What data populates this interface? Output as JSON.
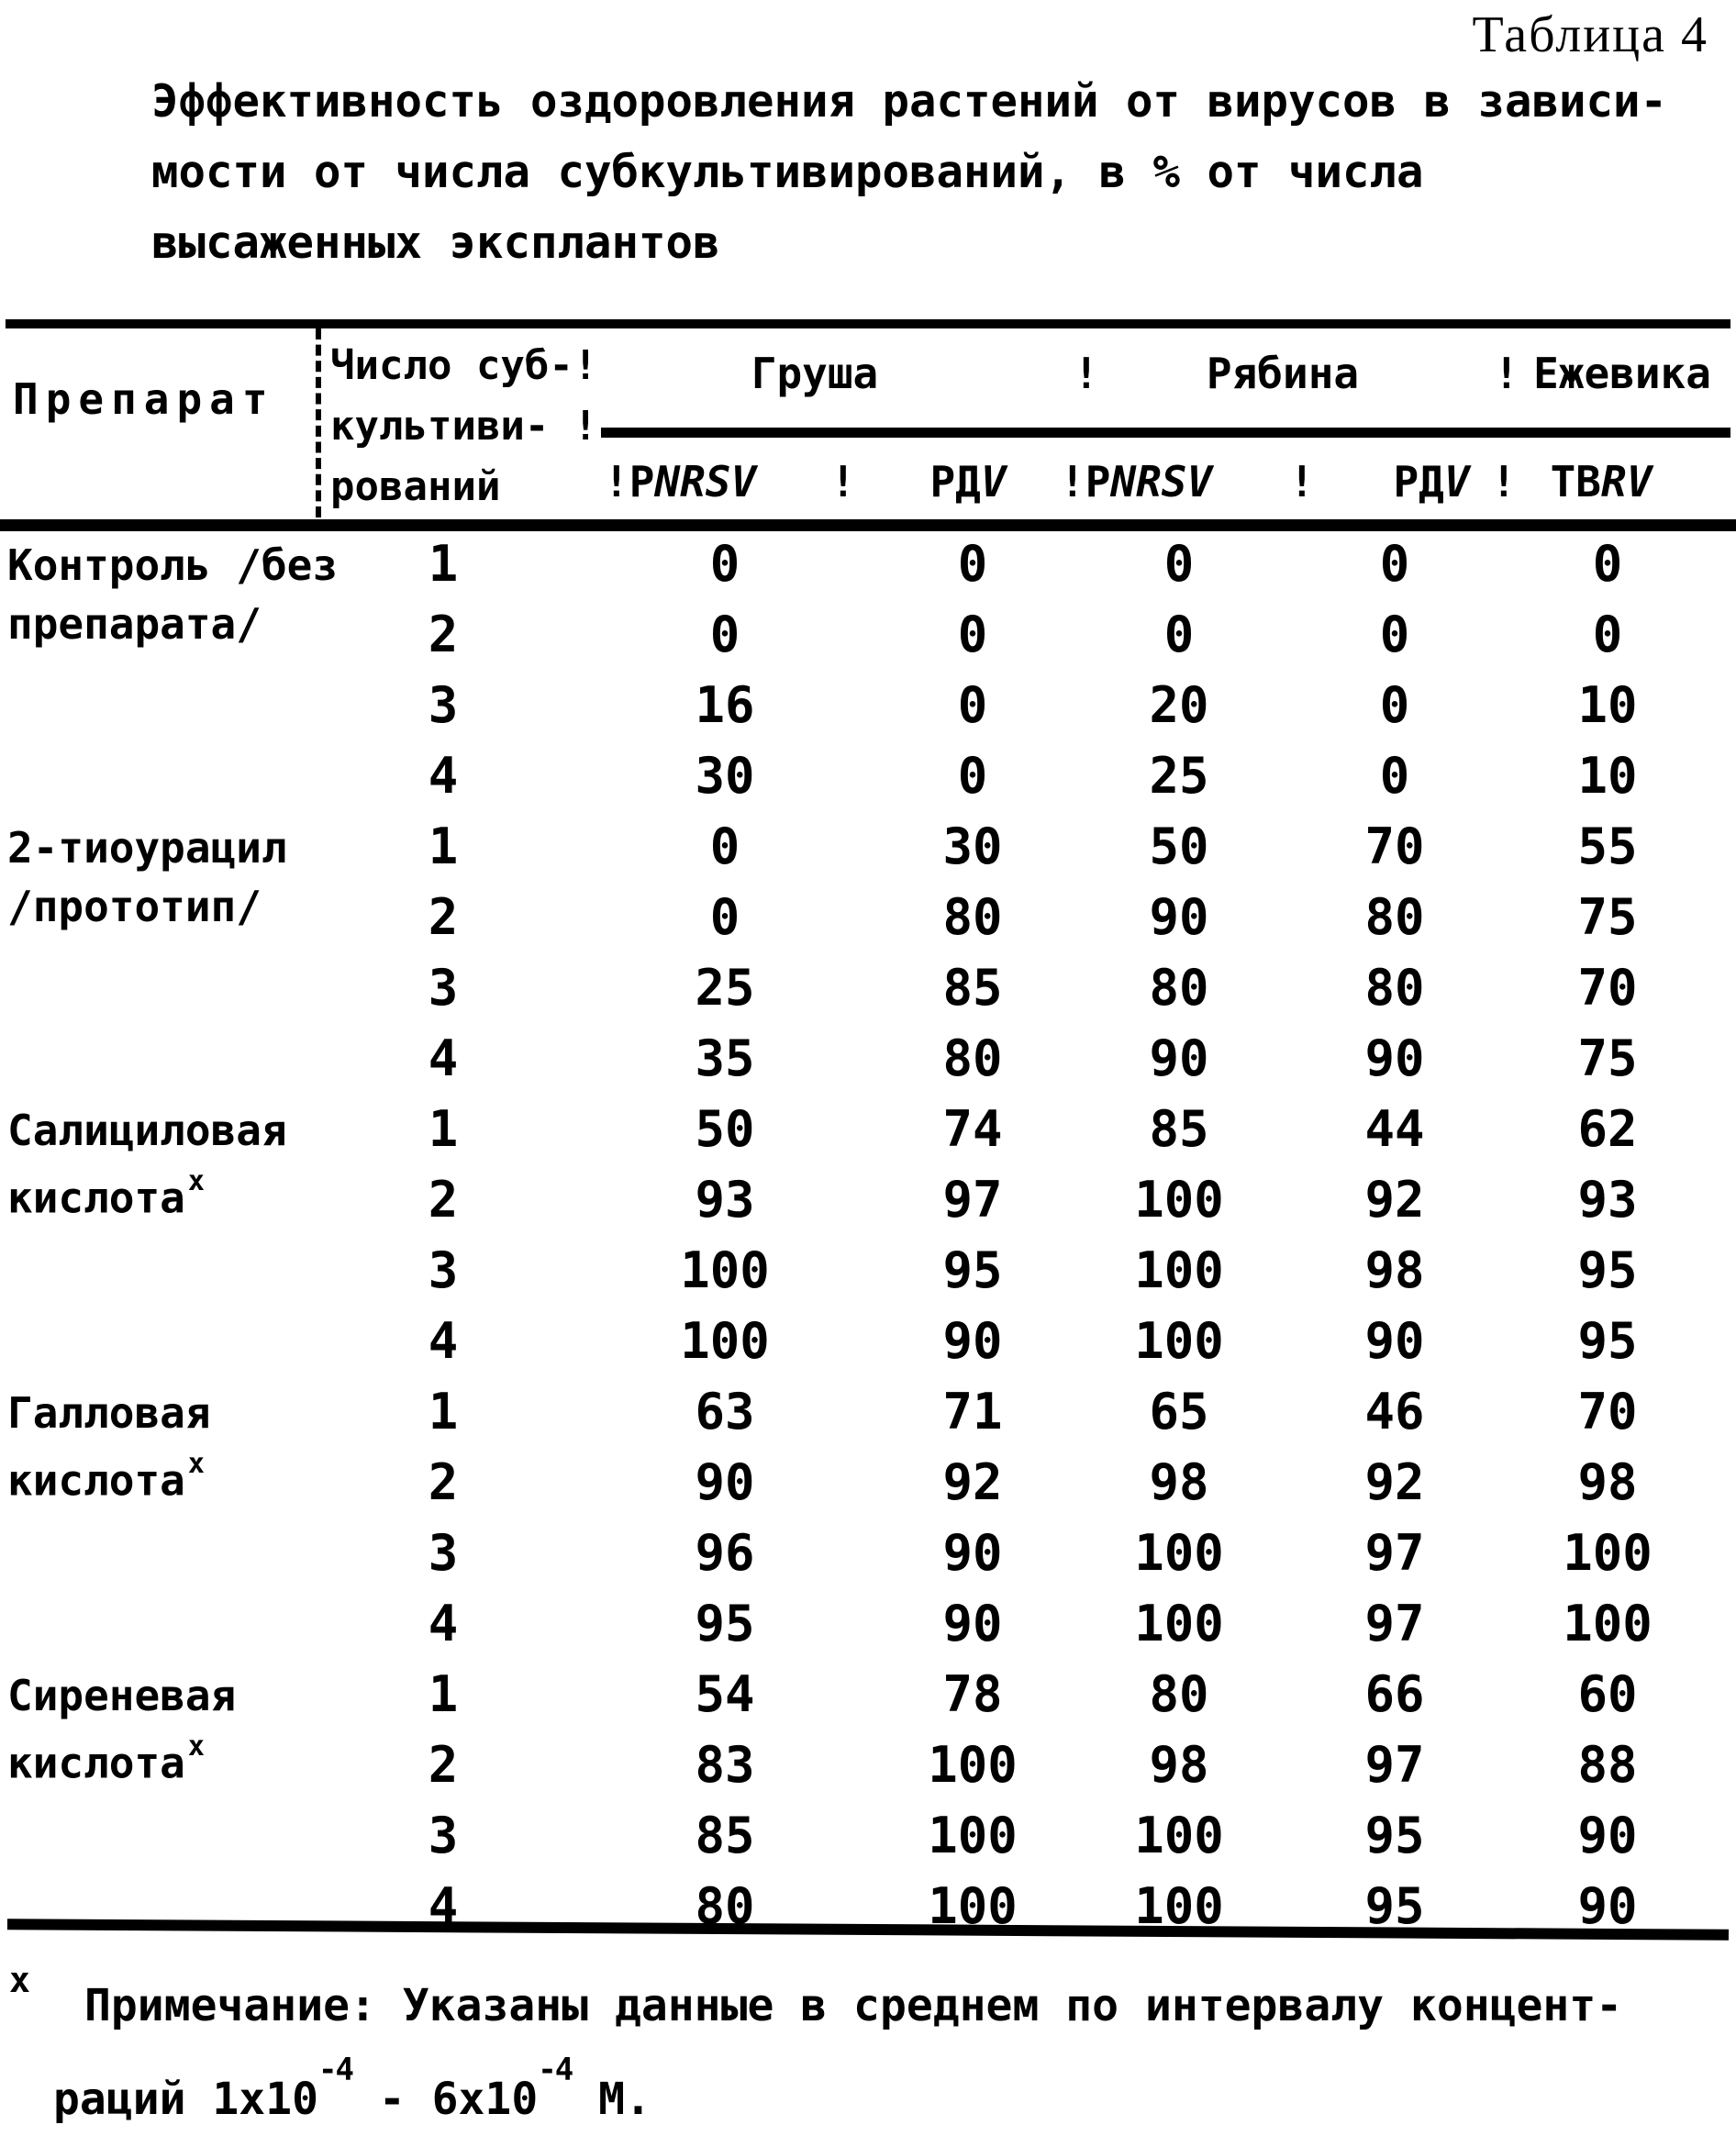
{
  "doc": {
    "table_label": "Таблица 4"
  },
  "title": {
    "line1": "Эффективность оздоровления растений от вирусов в зависи-",
    "line2": "мости от числа субкультивирований, в % от числа",
    "line3": "высаженных эксплантов"
  },
  "table": {
    "header": {
      "col_preparation": "Препарат",
      "col_subcultures_line1": "Число суб-!",
      "col_subcultures_line2": "культиви- !",
      "col_subcultures_line3": "рований",
      "separator_char": "!",
      "fruit_groups": [
        {
          "label": "Груша"
        },
        {
          "label": "Рябина"
        },
        {
          "label": "Ежевика"
        }
      ],
      "virus_columns": [
        {
          "pre": "!P",
          "it": "NRSV"
        },
        {
          "pre": "РД",
          "it": "V"
        },
        {
          "pre": "!P",
          "it": "NRSV"
        },
        {
          "pre": "РД",
          "it": "V"
        },
        {
          "pre": "ТВ",
          "it": "RV"
        }
      ]
    },
    "groups": [
      {
        "label_line1": "Контроль /без",
        "label_line2": "препарата/",
        "marker": "",
        "rows": [
          {
            "n": "1",
            "values": [
              "0",
              "0",
              "0",
              "0",
              "0"
            ]
          },
          {
            "n": "2",
            "values": [
              "0",
              "0",
              "0",
              "0",
              "0"
            ]
          },
          {
            "n": "3",
            "values": [
              "16",
              "0",
              "20",
              "0",
              "10"
            ]
          },
          {
            "n": "4",
            "values": [
              "30",
              "0",
              "25",
              "0",
              "10"
            ]
          }
        ]
      },
      {
        "label_line1": "2-тиоурацил",
        "label_line2": "/прототип/",
        "marker": "",
        "rows": [
          {
            "n": "1",
            "values": [
              "0",
              "30",
              "50",
              "70",
              "55"
            ]
          },
          {
            "n": "2",
            "values": [
              "0",
              "80",
              "90",
              "80",
              "75"
            ]
          },
          {
            "n": "3",
            "values": [
              "25",
              "85",
              "80",
              "80",
              "70"
            ]
          },
          {
            "n": "4",
            "values": [
              "35",
              "80",
              "90",
              "90",
              "75"
            ]
          }
        ]
      },
      {
        "label_line1": "Салициловая",
        "label_line2": "кислота",
        "marker": "х",
        "rows": [
          {
            "n": "1",
            "values": [
              "50",
              "74",
              "85",
              "44",
              "62"
            ]
          },
          {
            "n": "2",
            "values": [
              "93",
              "97",
              "100",
              "92",
              "93"
            ]
          },
          {
            "n": "3",
            "values": [
              "100",
              "95",
              "100",
              "98",
              "95"
            ]
          },
          {
            "n": "4",
            "values": [
              "100",
              "90",
              "100",
              "90",
              "95"
            ]
          }
        ]
      },
      {
        "label_line1": "Галловая",
        "label_line2": "кислота",
        "marker": "х",
        "rows": [
          {
            "n": "1",
            "values": [
              "63",
              "71",
              "65",
              "46",
              "70"
            ]
          },
          {
            "n": "2",
            "values": [
              "90",
              "92",
              "98",
              "92",
              "98"
            ]
          },
          {
            "n": "3",
            "values": [
              "96",
              "90",
              "100",
              "97",
              "100"
            ]
          },
          {
            "n": "4",
            "values": [
              "95",
              "90",
              "100",
              "97",
              "100"
            ]
          }
        ]
      },
      {
        "label_line1": "Сиреневая",
        "label_line2": "кислота",
        "marker": "х",
        "rows": [
          {
            "n": "1",
            "values": [
              "54",
              "78",
              "80",
              "66",
              "60"
            ]
          },
          {
            "n": "2",
            "values": [
              "83",
              "100",
              "98",
              "97",
              "88"
            ]
          },
          {
            "n": "3",
            "values": [
              "85",
              "100",
              "100",
              "95",
              "90"
            ]
          },
          {
            "n": "4",
            "values": [
              "80",
              "100",
              "100",
              "95",
              "90"
            ]
          }
        ]
      }
    ]
  },
  "footnote": {
    "marker": "х",
    "line1": "Примечание: Указаны данные в среднем по интервалу концент-",
    "line2_pre": "раций 1x10",
    "sup1": "-4",
    "line2_mid": " - 6x10",
    "sup2": "-4",
    "line2_end": " М."
  }
}
